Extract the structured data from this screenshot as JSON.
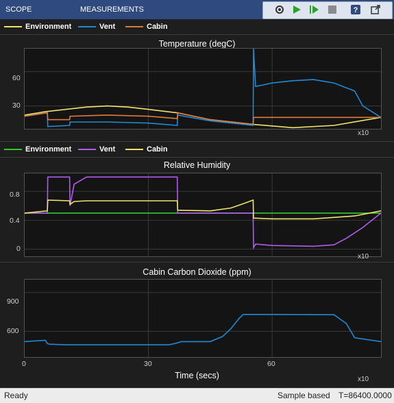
{
  "toolstrip": {
    "tabs": [
      "SCOPE",
      "MEASUREMENTS"
    ],
    "buttons": [
      "settings-icon",
      "run-icon",
      "step-forward-icon",
      "stop-icon",
      "help-icon",
      "undock-icon"
    ]
  },
  "legend1": {
    "items": [
      {
        "label": "Environment",
        "color": "#f2e36b"
      },
      {
        "label": "Vent",
        "color": "#1f8ad6"
      },
      {
        "label": "Cabin",
        "color": "#e07a3a"
      }
    ]
  },
  "legend2": {
    "items": [
      {
        "label": "Environment",
        "color": "#32c832"
      },
      {
        "label": "Vent",
        "color": "#b15bf0"
      },
      {
        "label": "Cabin",
        "color": "#f2e36b"
      }
    ]
  },
  "plot1": {
    "title": "Temperature (degC)",
    "yticks": [
      "60",
      "30"
    ],
    "exponent": "x10"
  },
  "plot2": {
    "title": "Relative Humidity",
    "yticks": [
      "0.8",
      "0.4",
      "0"
    ],
    "exponent": "x10"
  },
  "plot3": {
    "title": "Cabin Carbon Dioxide (ppm)",
    "yticks": [
      "900",
      "600"
    ],
    "xticks": [
      "0",
      "30",
      "60"
    ],
    "xlabel": "Time (secs)",
    "exponent": "x10"
  },
  "status": {
    "left": "Ready",
    "mid": "Sample based",
    "right": "T=86400.0000"
  },
  "chart_data": [
    {
      "type": "line",
      "title": "Temperature (degC)",
      "xlim": [
        0,
        86.4
      ],
      "ylim": [
        10,
        80
      ],
      "series": [
        {
          "name": "Environment",
          "color": "#f2e36b",
          "x": [
            0,
            5,
            10,
            15,
            20,
            25,
            30,
            37,
            45,
            55,
            65,
            75,
            86.4
          ],
          "y": [
            22,
            25,
            27,
            29,
            30,
            29,
            27,
            24,
            18,
            14,
            11,
            13,
            20
          ]
        },
        {
          "name": "Vent",
          "color": "#1f8ad6",
          "x": [
            0,
            5.5,
            5.6,
            10.9,
            11,
            20,
            30,
            37,
            37.1,
            45,
            55.4,
            55.5,
            56,
            60,
            65,
            70,
            75,
            80,
            82,
            86.4
          ],
          "y": [
            21,
            24,
            12,
            13,
            16,
            16,
            15,
            13,
            22,
            17,
            13,
            80,
            47,
            50,
            52,
            53,
            50,
            43,
            30,
            20
          ]
        },
        {
          "name": "Cabin",
          "color": "#e07a3a",
          "x": [
            0,
            5.5,
            5.6,
            10.9,
            11,
            20,
            30,
            37,
            37.1,
            45,
            55.4,
            55.5,
            86.4
          ],
          "y": [
            21,
            24,
            18,
            18,
            21,
            22,
            21,
            19,
            24,
            18,
            14,
            20,
            20
          ]
        }
      ]
    },
    {
      "type": "line",
      "title": "Relative Humidity",
      "xlim": [
        0,
        86.4
      ],
      "ylim": [
        -0.1,
        1.05
      ],
      "series": [
        {
          "name": "Environment",
          "color": "#32c832",
          "x": [
            0,
            86.4
          ],
          "y": [
            0.5,
            0.5
          ]
        },
        {
          "name": "Vent",
          "color": "#b15bf0",
          "x": [
            0,
            5.5,
            5.6,
            10.9,
            11,
            12,
            15,
            37,
            37.1,
            55.4,
            55.5,
            56,
            60,
            70,
            75,
            78,
            82,
            86.4
          ],
          "y": [
            0.5,
            0.5,
            1.0,
            1.0,
            0.6,
            0.9,
            1.0,
            1.0,
            0.5,
            0.5,
            0.02,
            0.07,
            0.05,
            0.04,
            0.06,
            0.15,
            0.3,
            0.5
          ]
        },
        {
          "name": "Cabin",
          "color": "#f2e36b",
          "x": [
            0,
            5.5,
            5.6,
            10.9,
            11,
            12,
            15,
            37,
            37.1,
            45,
            50,
            53,
            55.4,
            55.5,
            60,
            70,
            80,
            86.4
          ],
          "y": [
            0.5,
            0.53,
            0.68,
            0.67,
            0.62,
            0.66,
            0.67,
            0.67,
            0.54,
            0.53,
            0.57,
            0.63,
            0.68,
            0.43,
            0.42,
            0.42,
            0.46,
            0.53
          ]
        }
      ]
    },
    {
      "type": "line",
      "title": "Cabin Carbon Dioxide (ppm)",
      "xlabel": "Time (secs)",
      "xlim": [
        0,
        86.4
      ],
      "ylim": [
        400,
        1000
      ],
      "xticks": [
        0,
        30,
        60
      ],
      "series": [
        {
          "name": "",
          "color": "#1f8ad6",
          "x": [
            0,
            5,
            5.5,
            6,
            10,
            20,
            35,
            37,
            38,
            45,
            48,
            50,
            52,
            53,
            55,
            60,
            75,
            78,
            80,
            86.4
          ],
          "y": [
            520,
            530,
            505,
            500,
            495,
            495,
            495,
            510,
            520,
            520,
            560,
            620,
            700,
            730,
            730,
            730,
            728,
            660,
            550,
            520
          ]
        }
      ]
    }
  ]
}
